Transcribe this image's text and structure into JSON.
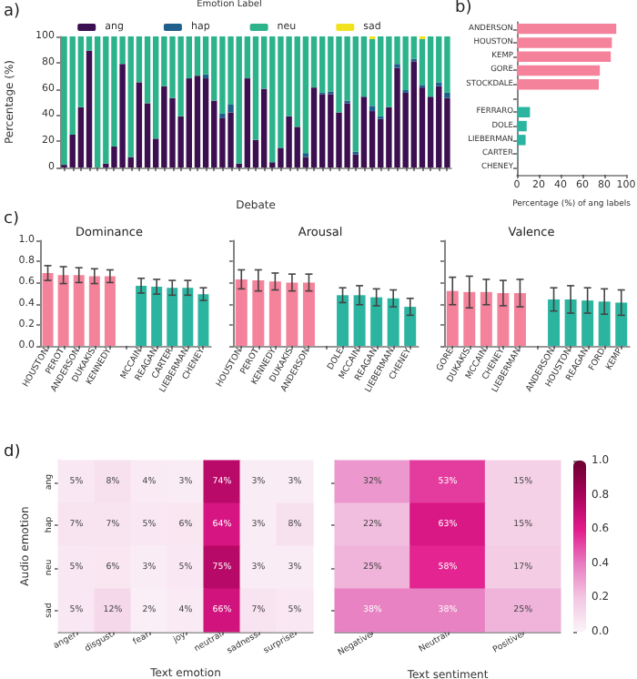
{
  "chart_data": [
    {
      "type": "bar",
      "xlabel": "Debate",
      "ylabel": "Percentage (%)",
      "legend_title": "Emotion Label",
      "legend": "top",
      "stacked": true,
      "annotations": [
        "a)"
      ],
      "categories": [
        null,
        null,
        null,
        null,
        null,
        null,
        null,
        null,
        null,
        null,
        null,
        null,
        null,
        null,
        null,
        null,
        null,
        null,
        null,
        null,
        null,
        null,
        null,
        null,
        null,
        null,
        null,
        null,
        null,
        null,
        null,
        null,
        null,
        null,
        null,
        null,
        null,
        null,
        null,
        null,
        null,
        null,
        null,
        null,
        null,
        null,
        null
      ],
      "ylim": [
        0,
        100
      ],
      "yticks": [
        0,
        20,
        40,
        60,
        80,
        100
      ],
      "series": [
        {
          "name": "ang",
          "color": "#3b0f50",
          "values": [
            2,
            25,
            46,
            89,
            0,
            3,
            16,
            79,
            8,
            65,
            49,
            22,
            62,
            53,
            39,
            68,
            70,
            68,
            51,
            38,
            42,
            3,
            68,
            21,
            60,
            4,
            15,
            39,
            31,
            8,
            61,
            56,
            56,
            42,
            49,
            10,
            54,
            43,
            37,
            46,
            76,
            57,
            81,
            61,
            54,
            62,
            53
          ]
        },
        {
          "name": "hap",
          "color": "#1f5f8b",
          "values": [
            0,
            0,
            0,
            0,
            0,
            0,
            0,
            0,
            0,
            0,
            0,
            0,
            0,
            0,
            0,
            0,
            0,
            3,
            0,
            3,
            6,
            0,
            0,
            0,
            0,
            0,
            0,
            0,
            0,
            3,
            0,
            1,
            2,
            0,
            2,
            2,
            0,
            4,
            2,
            0,
            3,
            2,
            2,
            2,
            0,
            3,
            4
          ]
        },
        {
          "name": "neu",
          "color": "#2db38c",
          "values": [
            98,
            75,
            54,
            11,
            100,
            97,
            84,
            21,
            92,
            35,
            51,
            78,
            38,
            47,
            61,
            32,
            30,
            29,
            49,
            59,
            52,
            97,
            32,
            79,
            40,
            96,
            85,
            61,
            69,
            89,
            39,
            43,
            42,
            58,
            49,
            88,
            46,
            51,
            61,
            54,
            21,
            41,
            17,
            35,
            46,
            35,
            43
          ]
        },
        {
          "name": "sad",
          "color": "#f2e11d",
          "values": [
            0,
            0,
            0,
            0,
            0,
            0,
            0,
            0,
            0,
            0,
            0,
            0,
            0,
            0,
            0,
            0,
            0,
            0,
            0,
            0,
            0,
            0,
            0,
            0,
            0,
            0,
            0,
            0,
            0,
            0,
            0,
            0,
            0,
            0,
            0,
            0,
            0,
            2,
            0,
            0,
            0,
            0,
            0,
            2,
            0,
            0,
            0
          ]
        }
      ]
    },
    {
      "type": "bar",
      "orientation": "horizontal",
      "xlabel": "Percentage (%) of ang labels",
      "annotations": [
        "b)"
      ],
      "categories": [
        "ANDERSON",
        "HOUSTON",
        "KEMP",
        "GORE",
        "STOCKDALE",
        null,
        "FERRARO",
        "DOLE",
        "LIEBERMAN",
        "CARTER",
        "CHENEY"
      ],
      "values": [
        91,
        87,
        86,
        76,
        75,
        null,
        12,
        9,
        8,
        1,
        0
      ],
      "colors": [
        "#f4829a",
        "#f4829a",
        "#f4829a",
        "#f4829a",
        "#f4829a",
        null,
        "#2bb5a0",
        "#2bb5a0",
        "#2bb5a0",
        "#2bb5a0",
        "#2bb5a0"
      ],
      "xlim": [
        0,
        100
      ],
      "xticks": [
        0,
        20,
        40,
        60,
        80,
        100
      ]
    },
    {
      "type": "bar",
      "title": "Dominance",
      "annotations": [
        "c)"
      ],
      "categories": [
        "HOUSTON",
        "PEROT",
        "ANDERSON",
        "DUKAKIS",
        "KENNEDY",
        null,
        "MCCAIN",
        "REAGAN",
        "CARTER",
        "LIEBERMAN",
        "CHENEY"
      ],
      "values": [
        0.69,
        0.67,
        0.67,
        0.66,
        0.66,
        null,
        0.57,
        0.56,
        0.55,
        0.55,
        0.49
      ],
      "errors": [
        0.07,
        0.08,
        0.07,
        0.07,
        0.06,
        null,
        0.07,
        0.07,
        0.07,
        0.07,
        0.06
      ],
      "colors": [
        "#f4829a",
        "#f4829a",
        "#f4829a",
        "#f4829a",
        "#f4829a",
        null,
        "#2bb5a0",
        "#2bb5a0",
        "#2bb5a0",
        "#2bb5a0",
        "#2bb5a0"
      ],
      "ylim": [
        0,
        1
      ],
      "yticks": [
        {
          "value": 0,
          "label": "0.0"
        },
        {
          "value": 0.2,
          "label": "0.2"
        },
        {
          "value": 0.4,
          "label": "0.4"
        },
        {
          "value": 0.6,
          "label": "0.6"
        },
        {
          "value": 0.8,
          "label": "0.8"
        },
        {
          "value": 1,
          "label": "1.0"
        }
      ]
    },
    {
      "type": "bar",
      "title": "Arousal",
      "tick_labels": "x",
      "categories": [
        "HOUSTON",
        "PEROT",
        "KENNEDY",
        "DUKAKIS",
        "ANDERSON",
        null,
        "DOLE",
        "MCCAIN",
        "REAGAN",
        "LIEBERMAN",
        "CHENEY"
      ],
      "values": [
        0.63,
        0.62,
        0.61,
        0.6,
        0.6,
        null,
        0.48,
        0.48,
        0.46,
        0.45,
        0.37
      ],
      "errors": [
        0.09,
        0.1,
        0.08,
        0.08,
        0.08,
        null,
        0.07,
        0.09,
        0.08,
        0.08,
        0.08
      ],
      "colors": [
        "#f4829a",
        "#f4829a",
        "#f4829a",
        "#f4829a",
        "#f4829a",
        null,
        "#2bb5a0",
        "#2bb5a0",
        "#2bb5a0",
        "#2bb5a0",
        "#2bb5a0"
      ],
      "ylim": [
        0,
        1
      ],
      "yticks": [
        {
          "value": 0,
          "label": null
        },
        {
          "value": 0.2,
          "label": null
        },
        {
          "value": 0.4,
          "label": null
        },
        {
          "value": 0.6,
          "label": null
        },
        {
          "value": 0.8,
          "label": null
        },
        {
          "value": 1,
          "label": null
        }
      ]
    },
    {
      "type": "bar",
      "title": "Valence",
      "tick_labels": "x",
      "categories": [
        "GORE",
        "DUKAKIS",
        "MCCAIN",
        "CHENEY",
        "LIEBERMAN",
        null,
        "ANDERSON",
        "HOUSTON",
        "REAGAN",
        "FORD",
        "KEMP"
      ],
      "values": [
        0.52,
        0.51,
        0.51,
        0.5,
        0.5,
        null,
        0.44,
        0.44,
        0.43,
        0.42,
        0.41
      ],
      "errors": [
        0.13,
        0.15,
        0.12,
        0.12,
        0.13,
        null,
        0.11,
        0.13,
        0.12,
        0.12,
        0.12
      ],
      "colors": [
        "#f4829a",
        "#f4829a",
        "#f4829a",
        "#f4829a",
        "#f4829a",
        null,
        "#2bb5a0",
        "#2bb5a0",
        "#2bb5a0",
        "#2bb5a0",
        "#2bb5a0"
      ],
      "ylim": [
        0,
        1
      ],
      "yticks": [
        {
          "value": 0,
          "label": null
        },
        {
          "value": 0.2,
          "label": null
        },
        {
          "value": 0.4,
          "label": null
        },
        {
          "value": 0.6,
          "label": null
        },
        {
          "value": 0.8,
          "label": null
        },
        {
          "value": 1,
          "label": null
        }
      ]
    },
    {
      "type": "heatmap",
      "xlabel": "Text emotion",
      "ylabel": "Audio emotion",
      "annotations": [
        "d)"
      ],
      "categories": [
        "anger",
        "disgust",
        "fear",
        "joy",
        "neutral",
        "sadness",
        "surprise"
      ],
      "y_categories": [
        "ang",
        "hap",
        "neu",
        "sad"
      ],
      "cells": [
        [
          0.05,
          0.08,
          0.04,
          0.03,
          0.74,
          0.03,
          0.03
        ],
        [
          0.07,
          0.07,
          0.05,
          0.06,
          0.64,
          0.03,
          0.08
        ],
        [
          0.05,
          0.06,
          0.03,
          0.05,
          0.75,
          0.03,
          0.03
        ],
        [
          0.05,
          0.12,
          0.02,
          0.04,
          0.66,
          0.07,
          0.05
        ]
      ],
      "cell_labels": [
        [
          "5%",
          "8%",
          "4%",
          "3%",
          "74%",
          "3%",
          "3%"
        ],
        [
          "7%",
          "7%",
          "5%",
          "6%",
          "64%",
          "3%",
          "8%"
        ],
        [
          "5%",
          "6%",
          "3%",
          "5%",
          "75%",
          "3%",
          "3%"
        ],
        [
          "5%",
          "12%",
          "2%",
          "4%",
          "66%",
          "7%",
          "5%"
        ]
      ]
    },
    {
      "type": "heatmap",
      "xlabel": "Text sentiment",
      "tick_labels": "x",
      "categories": [
        "Negative",
        "Neutral",
        "Positive"
      ],
      "y_categories": [
        null,
        null,
        null,
        null
      ],
      "cells": [
        [
          0.32,
          0.53,
          0.15
        ],
        [
          0.22,
          0.63,
          0.15
        ],
        [
          0.25,
          0.58,
          0.17
        ],
        [
          0.38,
          0.38,
          0.25
        ]
      ],
      "cell_labels": [
        [
          "32%",
          "53%",
          "15%"
        ],
        [
          "22%",
          "63%",
          "15%"
        ],
        [
          "25%",
          "58%",
          "17%"
        ],
        [
          "38%",
          "38%",
          "25%"
        ]
      ],
      "clim": [
        0,
        1
      ],
      "cticks": [
        {
          "value": 0,
          "label": "0.0"
        },
        {
          "value": 0.2,
          "label": "0.2"
        },
        {
          "value": 0.4,
          "label": "0.4"
        },
        {
          "value": 0.6,
          "label": "0.6"
        },
        {
          "value": 0.8,
          "label": "0.8"
        },
        {
          "value": 1,
          "label": "1.0"
        }
      ]
    }
  ]
}
